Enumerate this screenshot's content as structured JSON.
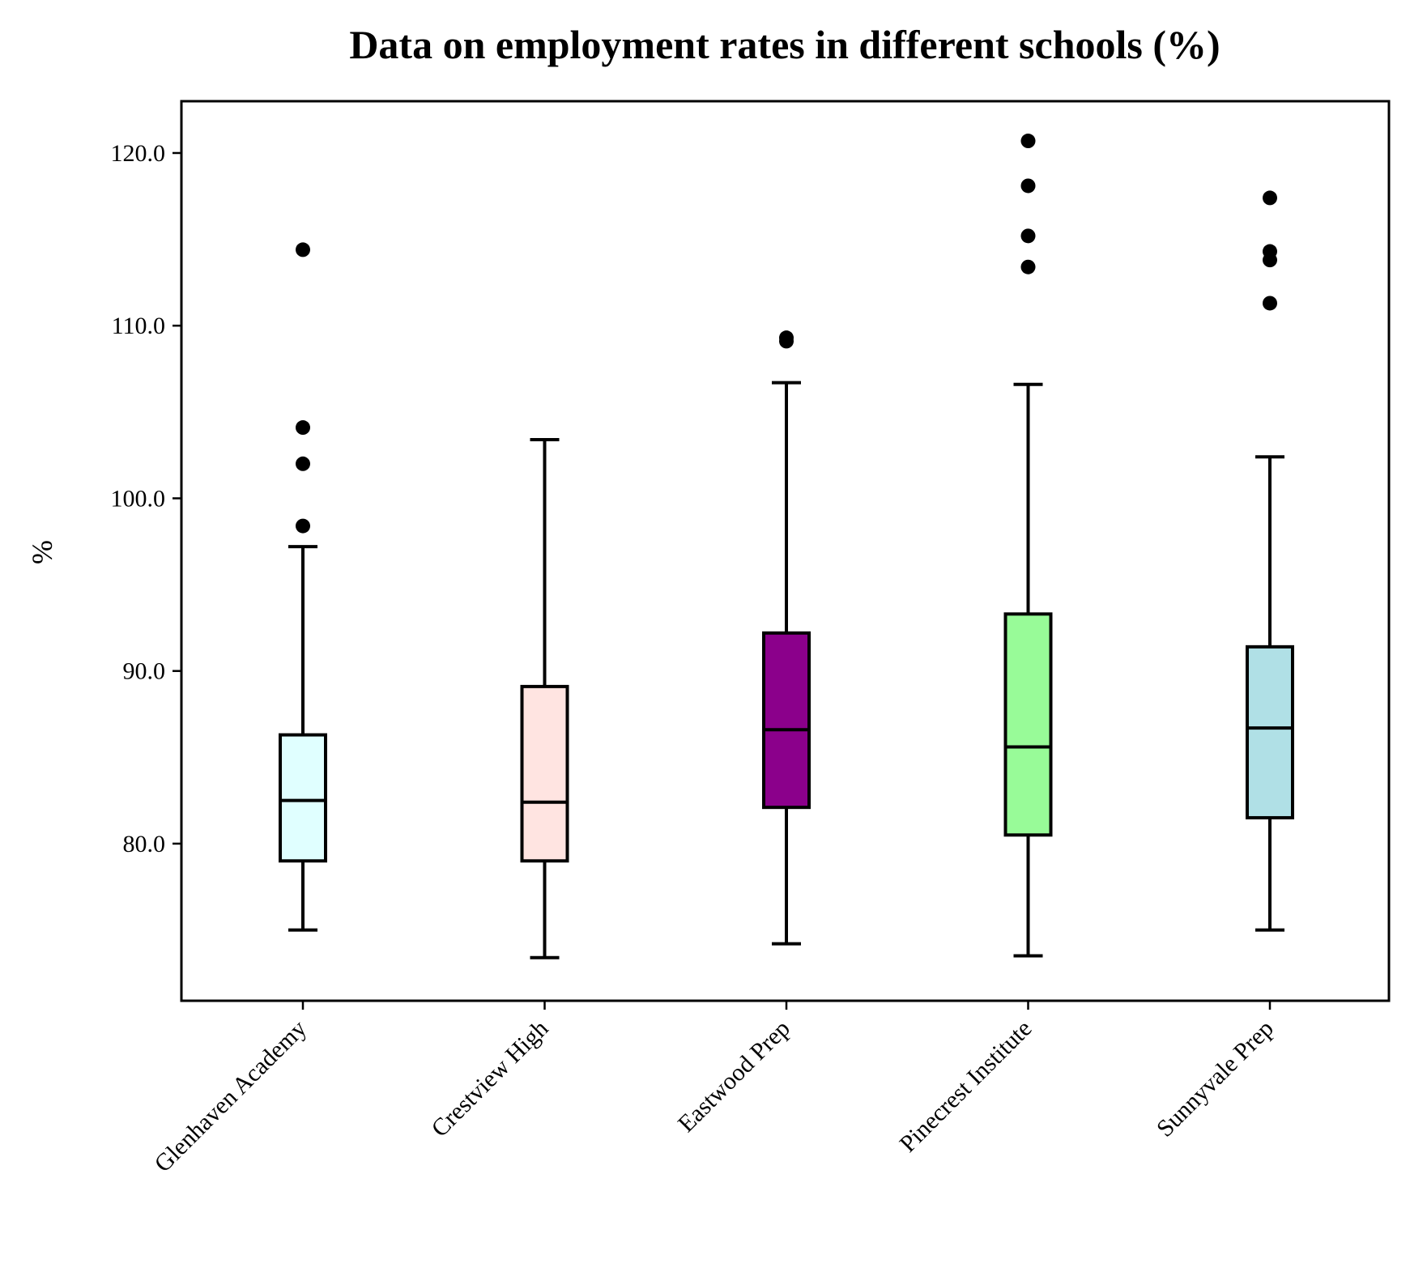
{
  "chart_data": {
    "type": "box",
    "title": "Data on employment rates in different schools (%)",
    "xlabel": "",
    "ylabel": "%",
    "ylim": [
      70.9,
      123.0
    ],
    "yticks": [
      80.0,
      90.0,
      100.0,
      110.0,
      120.0
    ],
    "ytick_labels": [
      "80.0",
      "90.0",
      "100.0",
      "110.0",
      "120.0"
    ],
    "categories": [
      "Glenhaven Academy",
      "Crestview High",
      "Eastwood Prep",
      "Pinecrest Institute",
      "Sunnyvale Prep"
    ],
    "series": [
      {
        "name": "Glenhaven Academy",
        "color": "#e0ffff",
        "whisker_low": 75.0,
        "q1": 79.0,
        "median": 82.5,
        "q3": 86.3,
        "whisker_high": 97.2,
        "outliers": [
          98.4,
          102.0,
          104.1,
          114.4
        ]
      },
      {
        "name": "Crestview High",
        "color": "#ffe4e1",
        "whisker_low": 73.4,
        "q1": 79.0,
        "median": 82.4,
        "q3": 89.1,
        "whisker_high": 103.4,
        "outliers": []
      },
      {
        "name": "Eastwood Prep",
        "color": "#8b008b",
        "whisker_low": 74.2,
        "q1": 82.1,
        "median": 86.6,
        "q3": 92.2,
        "whisker_high": 106.7,
        "outliers": [
          109.1,
          109.3
        ]
      },
      {
        "name": "Pinecrest Institute",
        "color": "#98fb98",
        "whisker_low": 73.5,
        "q1": 80.5,
        "median": 85.6,
        "q3": 93.3,
        "whisker_high": 106.6,
        "outliers": [
          113.4,
          115.2,
          118.1,
          120.7
        ]
      },
      {
        "name": "Sunnyvale Prep",
        "color": "#b0e0e6",
        "whisker_low": 75.0,
        "q1": 81.5,
        "median": 86.7,
        "q3": 91.4,
        "whisker_high": 102.4,
        "outliers": [
          111.3,
          113.8,
          114.3,
          117.4
        ]
      }
    ],
    "grid": false,
    "legend": "none"
  }
}
